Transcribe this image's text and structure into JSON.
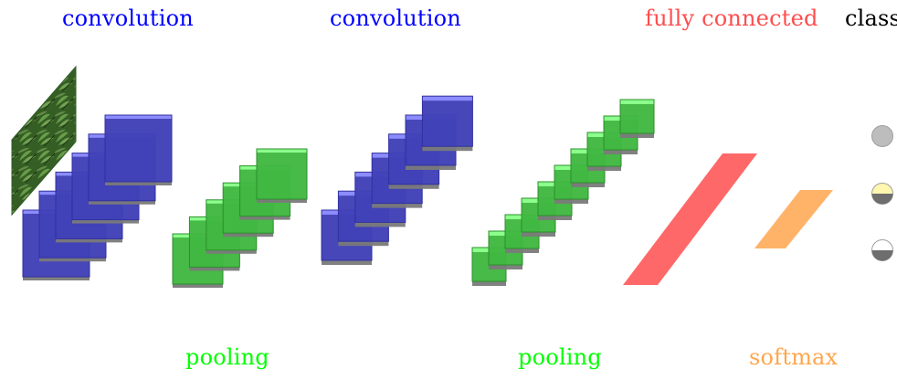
{
  "labels": {
    "convolution_1": "convolution",
    "pooling_1": "pooling",
    "convolution_2": "convolution",
    "pooling_2": "pooling",
    "fully_connected": "fully connected",
    "softmax": "softmax",
    "class": "class"
  },
  "colors": {
    "convolution": "#0000ff",
    "pooling": "#00ff00",
    "fully_connected": "#ff4d4d",
    "softmax": "#ffa64d",
    "class": "#000000",
    "feature_map_shadow": "#7a7a7a",
    "class_node_empty": "#bdbdbd",
    "class_node_active": "#fff7b0",
    "class_node_dark": "#6e6e6e"
  },
  "diagram": {
    "input_image": "leaf-image",
    "pipeline": [
      "input-image",
      "convolution",
      "pooling",
      "convolution",
      "pooling",
      "fully-connected",
      "softmax",
      "class"
    ],
    "class_nodes": [
      "empty",
      "half-yellow",
      "half-white"
    ]
  }
}
